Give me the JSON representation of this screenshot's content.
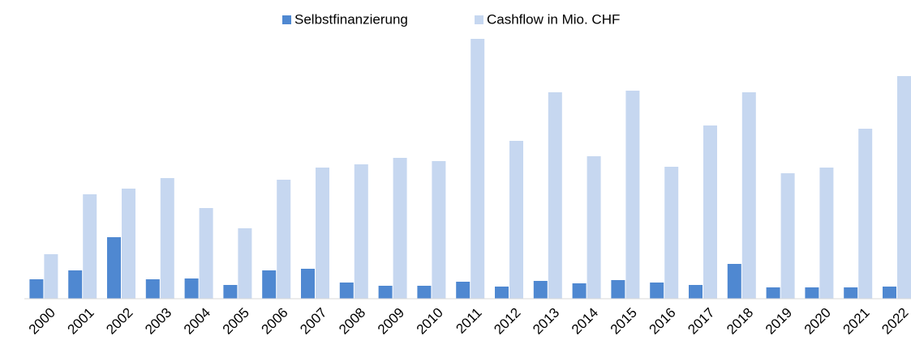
{
  "chart_data": {
    "type": "bar",
    "categories": [
      "2000",
      "2001",
      "2002",
      "2003",
      "2004",
      "2005",
      "2006",
      "2007",
      "2008",
      "2009",
      "2010",
      "2011",
      "2012",
      "2013",
      "2014",
      "2015",
      "2016",
      "2017",
      "2018",
      "2019",
      "2020",
      "2021",
      "2022"
    ],
    "series": [
      {
        "name": "Selbstfinanzierung",
        "color": "#4f88d1",
        "values": [
          24,
          35,
          76,
          24,
          25,
          17,
          35,
          37,
          20,
          16,
          16,
          21,
          15,
          22,
          19,
          23,
          20,
          17,
          43,
          14,
          14,
          14,
          15
        ]
      },
      {
        "name": "Cashflow in Mio. CHF",
        "color": "#c6d7f0",
        "values": [
          55,
          129,
          136,
          149,
          112,
          87,
          147,
          162,
          166,
          174,
          170,
          321,
          195,
          255,
          176,
          257,
          163,
          214,
          255,
          155,
          162,
          210,
          275
        ]
      }
    ],
    "ylim": [
      0,
      330
    ],
    "legend": "top"
  }
}
